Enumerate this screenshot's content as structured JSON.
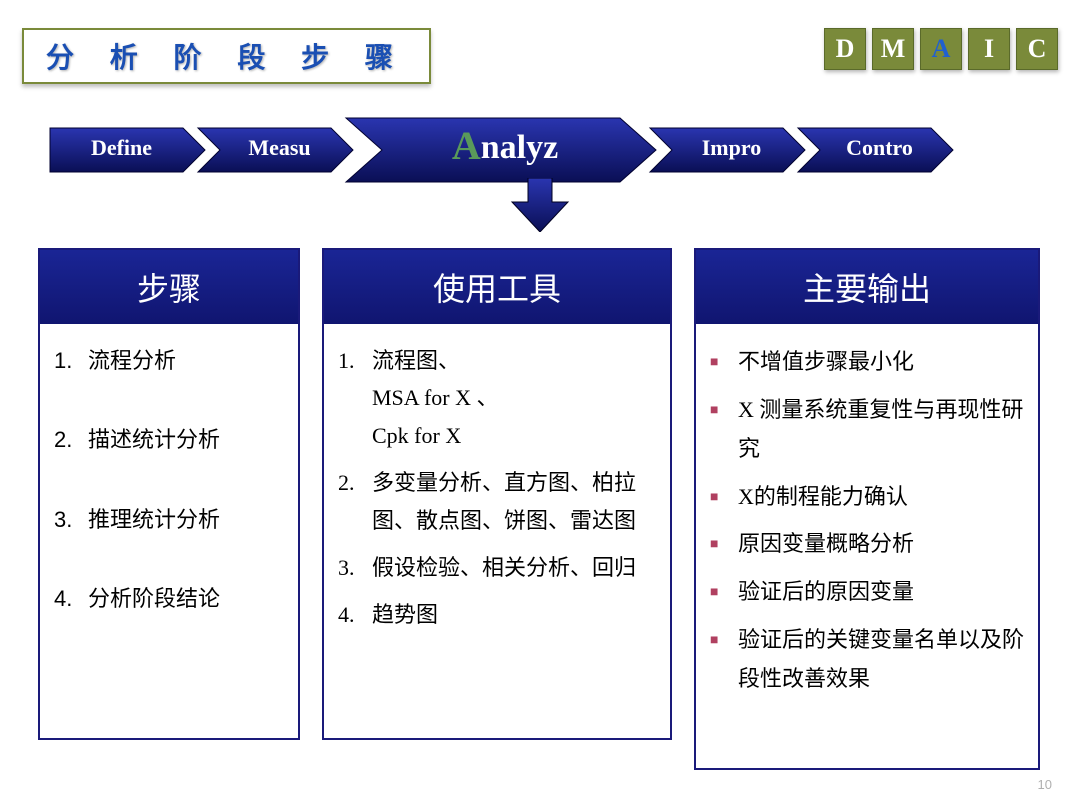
{
  "title": "分 析 阶 段 步 骤",
  "title_color": "#1a4fb3",
  "title_border": "#7a8a3a",
  "dmaic": {
    "letters": [
      "D",
      "M",
      "A",
      "I",
      "C"
    ],
    "highlight_index": 2,
    "bg": "#7a8a3a",
    "fg": "#ffffff",
    "highlight_fg": "#2060d0"
  },
  "chevrons": {
    "fill": "#151a8a",
    "grad_top": "#2a35b0",
    "grad_bot": "#0a0f55",
    "items": [
      "Define",
      "Measu",
      "Analyz",
      "Impro",
      "Contro"
    ],
    "highlight_index": 2,
    "first_letter_color": "#5a9a5a"
  },
  "down_arrow_fill": "#151a8a",
  "columns": {
    "header_bg": "#151a8a",
    "header_fg": "#ffffff",
    "border": "#1a1a7a",
    "col1": {
      "title": "步骤",
      "items": [
        "流程分析",
        "描述统计分析",
        "推理统计分析",
        "分析阶段结论"
      ]
    },
    "col2": {
      "title": "使用工具",
      "items": [
        "流程图、\nMSA for X 、\nCpk for X",
        "多变量分析、直方图、柏拉图、散点图、饼图、雷达图",
        "假设检验、相关分析、回归",
        "趋势图"
      ]
    },
    "col3": {
      "title": "主要输出",
      "bullet_color": "#b04060",
      "items": [
        "不增值步骤最小化",
        "X 测量系统重复性与再现性研究",
        "X的制程能力确认",
        "原因变量概略分析",
        "验证后的原因变量",
        "验证后的关键变量名单以及阶段性改善效果"
      ]
    }
  },
  "page_number": "10"
}
